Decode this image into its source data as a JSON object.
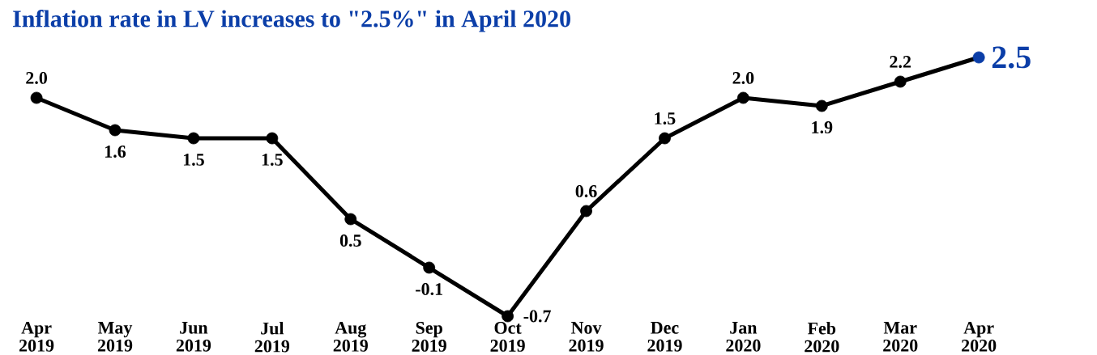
{
  "chart_data": {
    "type": "line",
    "title": "Inflation rate in LV increases to \"2.5%\" in April 2020",
    "categories": [
      "Apr 2019",
      "May 2019",
      "Jun 2019",
      "Jul 2019",
      "Aug 2019",
      "Sep 2019",
      "Oct 2019",
      "Nov 2019",
      "Dec 2019",
      "Jan 2020",
      "Feb 2020",
      "Mar 2020",
      "Apr 2020"
    ],
    "series": [
      {
        "color": "#000000",
        "values": [
          2.0,
          1.6,
          1.5,
          1.5,
          0.5,
          -0.1,
          -0.7,
          0.6,
          1.5,
          2.0,
          1.9,
          2.2,
          2.5
        ],
        "colors": [
          "#000000",
          "#000000",
          "#000000",
          "#000000",
          "#000000",
          "#000000",
          "#000000",
          "#000000",
          "#000000",
          "#000000",
          "#000000",
          "#000000",
          "#0b3ea8"
        ],
        "value_labels": [
          "2.0",
          "1.6",
          "1.5",
          "1.5",
          "0.5",
          "-0.1",
          "-0.7",
          "0.6",
          "1.5",
          "2.0",
          "1.9",
          "2.2",
          "2.5"
        ]
      }
    ],
    "marker": "circle",
    "line_style": "solid"
  }
}
